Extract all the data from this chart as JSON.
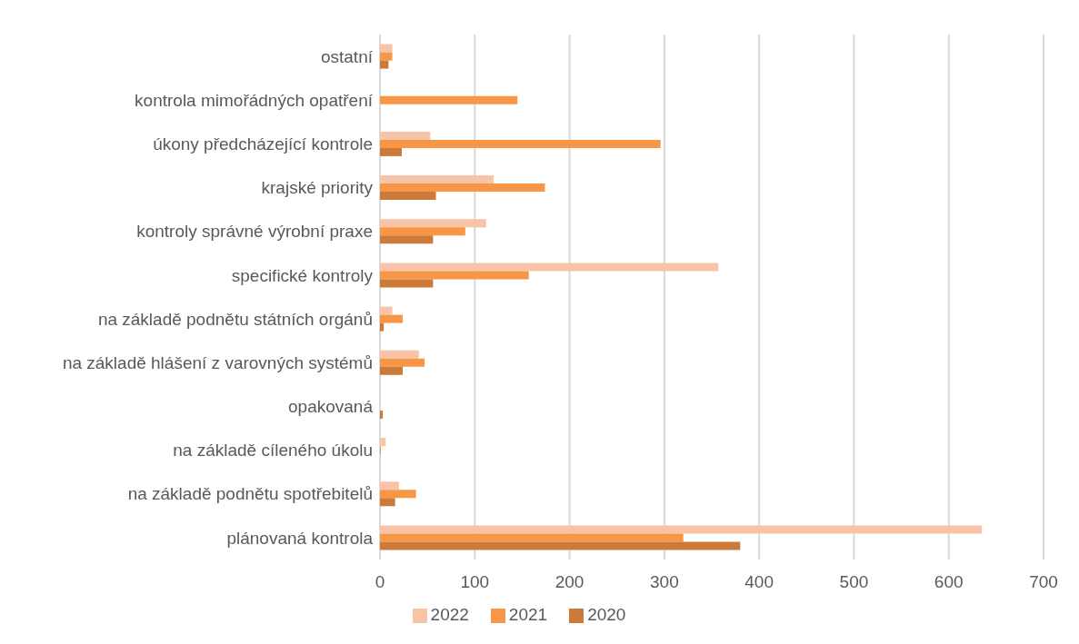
{
  "chart_data": {
    "type": "bar",
    "orientation": "horizontal",
    "categories": [
      "ostatní",
      "kontrola mimořádných opatření",
      "úkony předcházející kontrole",
      "krajské priority",
      "kontroly správné výrobní praxe",
      "specifické kontroly",
      "na základě podnětu státních orgánů",
      "na základě hlášení z varovných systémů",
      "opakovaná",
      "na základě cíleného úkolu",
      "na základě podnětu spotřebitelů",
      "plánovaná kontrola"
    ],
    "series": [
      {
        "name": "2022",
        "color": "#f8c3a6",
        "values": [
          13,
          null,
          53,
          120,
          112,
          357,
          13,
          41,
          null,
          6,
          20,
          635
        ]
      },
      {
        "name": "2021",
        "color": "#f79646",
        "values": [
          13,
          145,
          296,
          174,
          90,
          157,
          24,
          47,
          0,
          1,
          38,
          320
        ]
      },
      {
        "name": "2020",
        "color": "#cc7a3a",
        "values": [
          9,
          0,
          23,
          59,
          56,
          56,
          4,
          24,
          3,
          0,
          16,
          380
        ]
      }
    ],
    "xlim": [
      0,
      700
    ],
    "xticks": [
      0,
      100,
      200,
      300,
      400,
      500,
      600,
      700
    ],
    "grid": "x",
    "legend": "bottom"
  }
}
